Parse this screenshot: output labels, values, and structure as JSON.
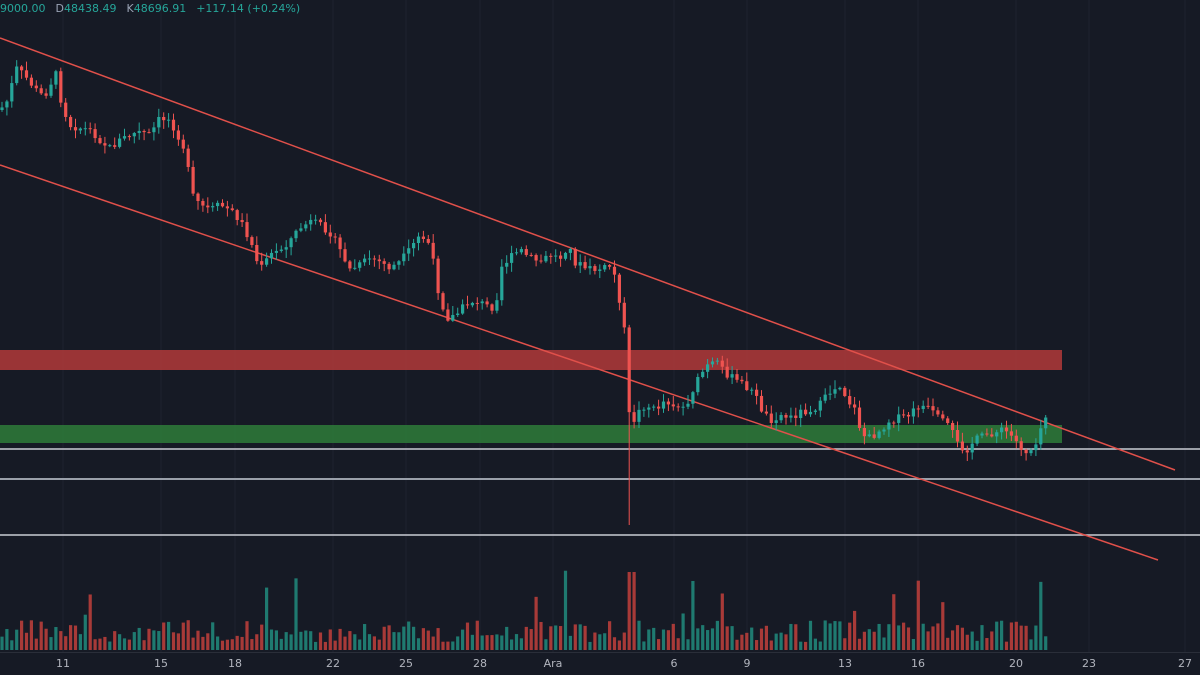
{
  "ohlc": {
    "open_fragment": "9000.00",
    "high_label": "D",
    "high_value": "48438.49",
    "close_label": "K",
    "close_value": "48696.91",
    "change": "+117.14 (+0.24%)"
  },
  "colors": {
    "background": "#161a25",
    "up": "#26a69a",
    "down": "#ef5350",
    "channel": "#e0504a",
    "resistance_zone": "#b23a3a",
    "support_zone": "#2e7d3a",
    "hline": "#c9ccd3"
  },
  "time_axis": {
    "ticks": [
      "11",
      "15",
      "18",
      "22",
      "25",
      "28",
      "Ara",
      "6",
      "9",
      "13",
      "16",
      "20",
      "23",
      "27"
    ]
  }
}
